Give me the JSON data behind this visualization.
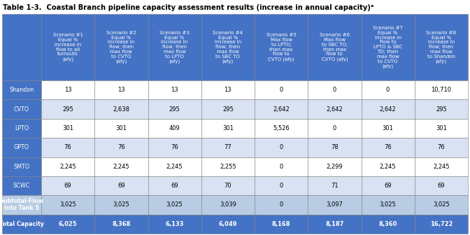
{
  "title": "Table 1-3.  Coastal Branch pipeline capacity assessment results (increase in annual capacity)ᵃ",
  "col_headers": [
    "Scenario #1\nEqual %\nincrease in\nflow to all\nturnouts\n(afy)",
    "Scenario #2\nEqual %\nincrease in\nflow; then\nmax flow\nto CVTO\n(afy)",
    "Scenario #3\nEqual %\nincrease in\nflow; then\nmax flow\nto LPTO\n(afy)",
    "Scenario #4\nEqual %\nincrease in\nflow; then\nmax flow\nto SBC TO\n(afy)",
    "Scenario #5\nMax flow\nto LPTO;\nthen max\nflow to\nCVTO (afy)",
    "Scenario #6\nMax flow\nto SBC TO;\nthen max\nflow to\nCVTO (afy)",
    "Scenario #7\nEqual %\nincrease in\nflow to\nLPTO & SBC\nTO; then\nmax flow\nto CVTO\n(afy)",
    "Scenario #8\nEqual %\nincrease in\nflow; then\nmax flow\nto Shandon\n(afy)"
  ],
  "row_labels": [
    "Shandon",
    "CVTO",
    "LPTO",
    "GPTO",
    "SMTO",
    "SCWC",
    "Subtotal-Flow\ninto Tank 5",
    "Total Capacity"
  ],
  "data": [
    [
      "13",
      "13",
      "13",
      "13",
      "0",
      "0",
      "0",
      "10,710"
    ],
    [
      "295",
      "2,638",
      "295",
      "295",
      "2,642",
      "2,642",
      "2,642",
      "295"
    ],
    [
      "301",
      "301",
      "409",
      "301",
      "5,526",
      "0",
      "301",
      "301"
    ],
    [
      "76",
      "76",
      "76",
      "77",
      "0",
      "78",
      "76",
      "76"
    ],
    [
      "2,245",
      "2,245",
      "2,245",
      "2,255",
      "0",
      "2,299",
      "2,245",
      "2,245"
    ],
    [
      "69",
      "69",
      "69",
      "70",
      "0",
      "71",
      "69",
      "69"
    ],
    [
      "3,025",
      "3,025",
      "3,025",
      "3,039",
      "0",
      "3,097",
      "3,025",
      "3,025"
    ],
    [
      "6,025",
      "8,368",
      "6,133",
      "6,049",
      "8,168",
      "8,187",
      "8,360",
      "16,722"
    ]
  ],
  "header_bg": "#4472C4",
  "row_label_bg": "#4472C4",
  "row_colors": [
    "#FFFFFF",
    "#D9E2F3",
    "#FFFFFF",
    "#D9E2F3",
    "#FFFFFF",
    "#D9E2F3",
    "#B8CCE4",
    "#4472C4"
  ],
  "header_text_color": "#FFFFFF",
  "data_text_color": "#000000",
  "total_text_color": "#FFFFFF",
  "subtotal_label_color": "#FFFFFF",
  "border_color": "#808080",
  "title_fontsize": 7.2,
  "header_fontsize": 5.0,
  "cell_fontsize": 6.0,
  "row_label_fontsize": 5.8
}
